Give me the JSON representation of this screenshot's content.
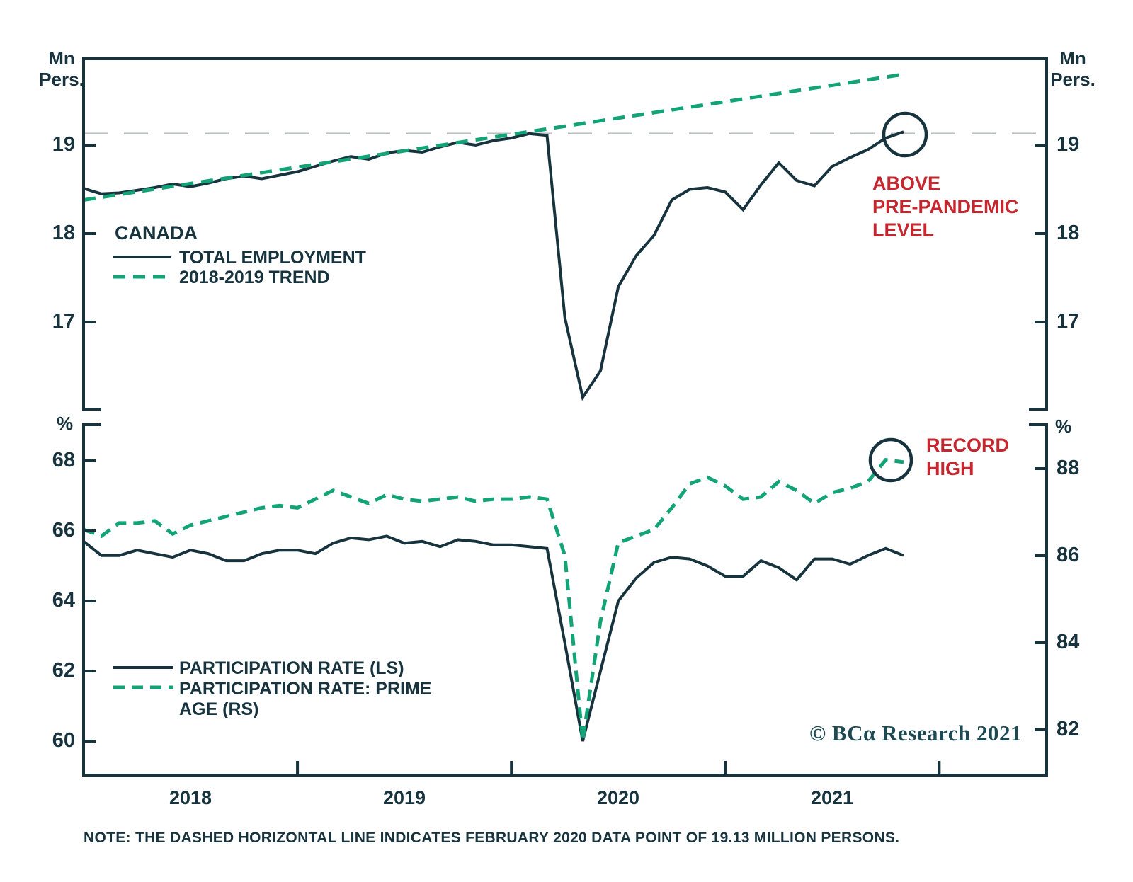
{
  "figure": {
    "source": "© BCα Research 2021",
    "note": "NOTE: THE DASHED HORIZONTAL LINE INDICATES FEBRUARY 2020 DATA POINT OF 19.13 MILLION PERSONS.",
    "units": {
      "mn": "Mn",
      "pers": "Pers.",
      "pct": "%"
    },
    "colors": {
      "dark": "#17333e",
      "green": "#12a376",
      "red": "#c6262e",
      "gray_dash": "#b9bdbd",
      "background": "#ffffff"
    }
  },
  "chart_data": [
    {
      "type": "line",
      "panel": "top",
      "region_label": "CANADA",
      "unit_left": "Mn Pers.",
      "unit_right": "Mn Pers.",
      "x_freq": "monthly",
      "x_range": [
        "2018-01",
        "2021-11"
      ],
      "x_year_labels": [
        "2018",
        "2019",
        "2020",
        "2021"
      ],
      "ylim": [
        16,
        20
      ],
      "yticks_left": [
        19,
        18,
        17
      ],
      "yticks_right": [
        19,
        18,
        17
      ],
      "grid": false,
      "legend_position": "upper-left-inside",
      "legend": [
        {
          "label": "TOTAL EMPLOYMENT",
          "style": "solid"
        },
        {
          "label": "2018-2019 TREND",
          "style": "dashed"
        }
      ],
      "reference_line": {
        "value": 19.13,
        "style": "dashed-gray",
        "meaning": "February 2020 data point"
      },
      "annotation": {
        "lines": [
          "ABOVE",
          "PRE-PANDEMIC",
          "LEVEL"
        ],
        "color": "#c6262e",
        "circled_value": 19.15
      },
      "series": [
        {
          "name": "TOTAL EMPLOYMENT",
          "style": "solid",
          "values": [
            18.51,
            18.45,
            18.46,
            18.49,
            18.52,
            18.56,
            18.53,
            18.57,
            18.62,
            18.65,
            18.62,
            18.66,
            18.7,
            18.76,
            18.82,
            18.87,
            18.84,
            18.91,
            18.94,
            18.92,
            18.98,
            19.03,
            19.0,
            19.05,
            19.08,
            19.13,
            19.11,
            17.05,
            16.15,
            16.45,
            17.4,
            17.75,
            17.98,
            18.38,
            18.5,
            18.52,
            18.47,
            18.27,
            18.55,
            18.8,
            18.6,
            18.54,
            18.76,
            18.86,
            18.95,
            19.08,
            19.15
          ]
        },
        {
          "name": "2018-2019 TREND",
          "style": "dashed",
          "trend_start": 18.38,
          "trend_end": 19.8
        }
      ]
    },
    {
      "type": "line",
      "panel": "bottom",
      "unit_left": "%",
      "unit_right": "%",
      "x_freq": "monthly",
      "x_range": [
        "2018-01",
        "2021-11"
      ],
      "ylim_left": [
        59,
        69
      ],
      "ylim_right": [
        81,
        89
      ],
      "yticks_left": [
        68,
        66,
        64,
        62,
        60
      ],
      "yticks_right": [
        88,
        86,
        84,
        82
      ],
      "grid": false,
      "legend_position": "lower-left-inside",
      "legend": [
        {
          "label": "PARTICIPATION RATE (LS)",
          "style": "solid"
        },
        {
          "label": "PARTICIPATION RATE: PRIME AGE (RS)",
          "label_lines": [
            "PARTICIPATION RATE: PRIME",
            "AGE (RS)"
          ],
          "style": "dashed"
        }
      ],
      "annotation": {
        "lines": [
          "RECORD",
          "HIGH"
        ],
        "color": "#c6262e",
        "circled_value": 88.2
      },
      "series": [
        {
          "name": "PARTICIPATION RATE (LS)",
          "axis": "left",
          "style": "solid",
          "values": [
            65.7,
            65.3,
            65.3,
            65.45,
            65.35,
            65.25,
            65.45,
            65.35,
            65.15,
            65.15,
            65.35,
            65.45,
            65.45,
            65.35,
            65.65,
            65.8,
            65.75,
            65.85,
            65.65,
            65.7,
            65.55,
            65.75,
            65.7,
            65.6,
            65.6,
            65.55,
            65.5,
            62.8,
            60.0,
            62.0,
            64.0,
            64.65,
            65.1,
            65.25,
            65.2,
            65.0,
            64.7,
            64.7,
            65.15,
            64.95,
            64.6,
            65.2,
            65.2,
            65.05,
            65.3,
            65.5,
            65.3
          ]
        },
        {
          "name": "PARTICIPATION RATE: PRIME AGE (RS)",
          "axis": "right",
          "style": "dashed",
          "values": [
            86.6,
            86.45,
            86.75,
            86.75,
            86.8,
            86.5,
            86.7,
            86.8,
            86.9,
            87.0,
            87.1,
            87.15,
            87.1,
            87.3,
            87.5,
            87.35,
            87.2,
            87.4,
            87.3,
            87.25,
            87.3,
            87.35,
            87.25,
            87.3,
            87.3,
            87.35,
            87.3,
            86.0,
            81.75,
            84.5,
            86.3,
            86.45,
            86.6,
            87.1,
            87.65,
            87.8,
            87.6,
            87.3,
            87.35,
            87.7,
            87.5,
            87.2,
            87.45,
            87.55,
            87.7,
            88.2,
            88.15
          ]
        }
      ]
    }
  ]
}
